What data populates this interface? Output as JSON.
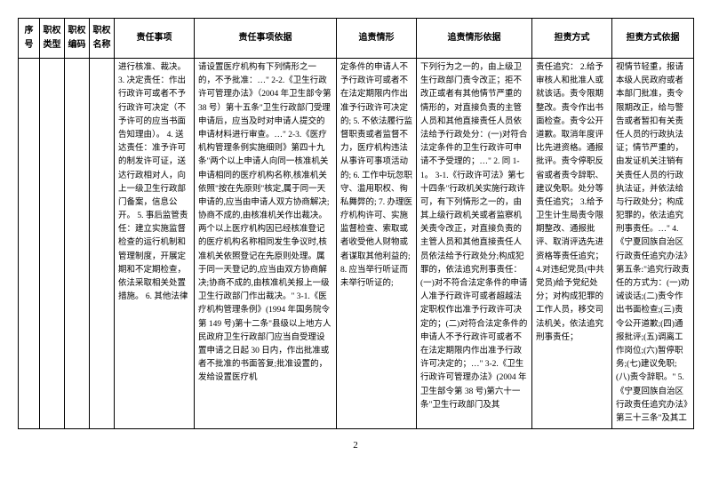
{
  "table": {
    "headers": [
      "序号",
      "职权类型",
      "职权编码",
      "职权名称",
      "责任事项",
      "责任事项依据",
      "追责情形",
      "追责情形依据",
      "担责方式",
      "担责方式依据"
    ],
    "row": {
      "seq": "",
      "type": "",
      "code": "",
      "name": "",
      "duty": "进行核准、裁决。\n3. 决定责任：作出行政许可或者不予行政许可决定（不予许可的应当书面告知理由）。\n4. 送达责任：准予许可的制发许可证，送达行政相对人，向上一级卫生行政部门备案，信息公开。\n5. 事后监管责任：建立实施监督检查的运行机制和管理制度，开展定期和不定期检查，依法采取相关处置措施。\n6. 其他法律",
      "basis": "请设置医疗机构有下列情形之一的，不予批准：…\"\n2-2.《卫生行政许可管理办法》（2004 年卫生部令第 38 号）第十五条\"卫生行政部门受理申请后，应当及时对申请人提交的申请材料进行审查。…\"\n2-3.《医疗机构管理条例实施细则》第四十九条\"两个以上申请人向同一核准机关申请相同的医疗机构名称,核准机关依照\"按在先原则\"核定,属于同一天申请的,应当由申请人双方协商解决;协商不成的,由核准机关作出裁决。 两个以上医疗机构因已经核准登记的医疗机构名称相同发生争议时,核准机关依照登记在先原则处理。属于同一天登记的,应当由双方协商解决;协商不成的,由核准机关报上一级卫生行政部门作出裁决。\"\n3-1.《医疗机构管理条例》(1994 年国务院令第 149 号)第十二条\"县级以上地方人民政府卫生行政部门应当自受理设置申请之日起 30 日内，作出批准或者不批准的书面答复;批准设置的，发给设置医疗机",
      "account": "定条件的申请人不予行政许可或者不在法定期限内作出准予行政许可决定的;\n5. 不依法履行监督职责或者监督不力，医疗机构违法从事许可事项活动的;\n6. 工作中玩忽职守、滥用职权、徇私舞弊的;\n7. 办理医疗机构许可、实施监督检查、索取或者收受他人财物或者谋取其他利益的;\n8. 应当举行听证而未举行听证的;",
      "account_basis": "下列行为之一的，由上级卫生行政部门责令改正；拒不改正或者有其他情节严重的情形的，对直接负责的主管人员和其他直接责任人员依法给予行政处分：(一)对符合法定条件的卫生行政许可申请不予受理的；…\"\n2. 同 1-1。\n3-1.《行政许可法》第七十四条\"行政机关实施行政许可，有下列情形之一的，由其上级行政机关或者监察机关责令改正，对直接负责的主管人员和其他直接责任人员依法给予行政处分;构成犯罪的，依法追究刑事责任：(一)对不符合法定条件的申请人准予行政许可或者超越法定职权作出准予行政许可决定的；(二)对符合法定条件的申请人不予行政许可或者不在法定期限内作出准予行政许可决定的；…\"\n3-2.《卫生行政许可管理办法》(2004 年卫生部令第 38 号)第六十一条\"卫生行政部门及其",
      "method": "责任追究：\n2.给予审核人和批准人或就该话。责令限期整改。责令作出书面检查。责令公开道歉。取消年度评比先进资格。通报批评。责令停职反省或者责令辞职、建议免职。处分等责任追究；\n3.给予卫生计生局责令限期整改、通报批评、取消评选先进资格等责任追究；\n4.对违纪党员(中共党员)给予党纪处分；对构成犯罪的工作人员，移交司法机关，依法追究刑事责任；",
      "method_basis": "视情节轻重，报请本级人民政府或者本部门批准，责令限期改正，给与警告或者暂扣有关责任人员的行政执法证；情节严重的，由发证机关注销有关责任人员的行政执法证，并依法给与行政处分；构成犯罪的，依法追究刑事责任。…\"\n4.《宁夏回族自治区行政责任追究办法》第五条:\"追究行政责任的方式为：(一)劝诫谈话;(二)责令作出书面检查;(三)责令公开道歉;(四)通报批评;(五)调离工作岗位;(六)暂停职务;(七)建议免职;(八)责令辞职。\"\n5.《宁夏回族自治区行政责任追究办法》第三十三条\"及其工"
    }
  },
  "page_number": "2"
}
